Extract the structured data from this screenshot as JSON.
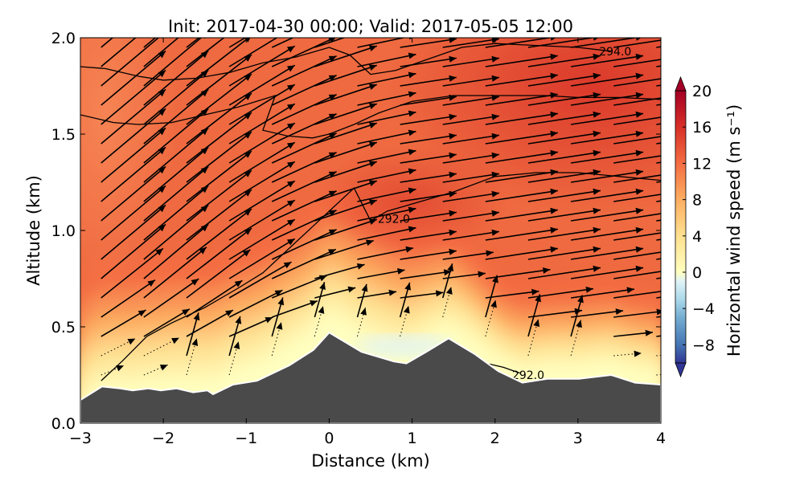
{
  "chart_data": {
    "type": "contour-quiver",
    "title": "Init: 2017-04-30 00:00; Valid: 2017-05-05 12:00",
    "xlabel": "Distance (km)",
    "ylabel": "Altitude (km)",
    "xlim": [
      -3,
      4
    ],
    "ylim": [
      0,
      2
    ],
    "xticks": [
      -3,
      -2,
      -1,
      0,
      1,
      2,
      3,
      4
    ],
    "xtick_labels": [
      "−3",
      "−2",
      "−1",
      "0",
      "1",
      "2",
      "3",
      "4"
    ],
    "yticks": [
      0,
      0.5,
      1,
      1.5,
      2
    ],
    "ytick_labels": [
      "0.0",
      "0.5",
      "1.0",
      "1.5",
      "2.0"
    ],
    "colorbar": {
      "label": "Horizontal wind speed (m s⁻¹)",
      "range": [
        -10,
        20
      ],
      "extend": "both",
      "ticks": [
        -8,
        -4,
        0,
        4,
        8,
        12,
        16,
        20
      ],
      "tick_labels": [
        "−8",
        "−4",
        "0",
        "4",
        "8",
        "12",
        "16",
        "20"
      ],
      "colors": [
        [
          -10,
          "#313695"
        ],
        [
          -8,
          "#4575b4"
        ],
        [
          -5,
          "#74add1"
        ],
        [
          -3,
          "#abd9e9"
        ],
        [
          -1,
          "#e0f3f8"
        ],
        [
          0,
          "#ffffbf"
        ],
        [
          4,
          "#fee090"
        ],
        [
          8,
          "#fdae61"
        ],
        [
          12,
          "#f46d43"
        ],
        [
          16,
          "#d73027"
        ],
        [
          20,
          "#a50026"
        ]
      ]
    },
    "terrain": {
      "color": "#4a4a4a",
      "x": [
        -3.0,
        -2.74,
        -2.52,
        -2.37,
        -2.18,
        -2.03,
        -1.84,
        -1.64,
        -1.47,
        -1.4,
        -1.16,
        -0.87,
        -0.48,
        -0.19,
        0.0,
        0.39,
        0.78,
        0.93,
        1.17,
        1.44,
        1.75,
        2.04,
        2.33,
        2.63,
        3.01,
        3.4,
        3.69,
        4.0
      ],
      "z": [
        0.12,
        0.19,
        0.18,
        0.17,
        0.18,
        0.17,
        0.18,
        0.16,
        0.17,
        0.15,
        0.2,
        0.22,
        0.3,
        0.38,
        0.47,
        0.37,
        0.32,
        0.31,
        0.37,
        0.44,
        0.36,
        0.27,
        0.21,
        0.23,
        0.23,
        0.25,
        0.21,
        0.2
      ]
    },
    "contours": [
      {
        "level": "294.0",
        "label_at": [
          3.45,
          1.93
        ],
        "x": [
          -3,
          -2.7,
          -2.3,
          -2,
          -1.6,
          -1.2,
          -0.8,
          -0.4,
          0,
          0.25,
          0.5,
          0.8,
          1.2,
          1.6,
          2,
          2.5,
          3,
          3.4
        ],
        "z": [
          1.85,
          1.84,
          1.8,
          1.78,
          1.79,
          1.82,
          1.87,
          1.9,
          1.95,
          1.91,
          1.81,
          1.83,
          1.89,
          1.95,
          1.97,
          1.96,
          1.95,
          1.93
        ]
      },
      {
        "level": "294.0",
        "x": [
          -3,
          -2.6,
          -2.3,
          -1.9,
          -1.5,
          -1.1,
          -0.65,
          -0.8,
          -0.5,
          -0.2,
          0,
          0.3,
          0.6,
          1,
          1.5,
          2,
          2.6,
          3,
          3.5,
          4
        ],
        "z": [
          1.6,
          1.56,
          1.55,
          1.56,
          1.6,
          1.64,
          1.7,
          1.52,
          1.49,
          1.48,
          1.5,
          1.55,
          1.61,
          1.67,
          1.7,
          1.7,
          1.7,
          1.69,
          1.69,
          1.68
        ]
      },
      {
        "level": "292.0",
        "label_at": [
          0.78,
          1.06
        ],
        "x": [
          -2.75,
          -2.5,
          -2.2,
          -1.9,
          -1.5,
          -1.1,
          -0.8,
          -0.5,
          -0.2,
          0,
          0.3,
          0.5,
          0.7,
          1.1,
          1.5,
          2,
          2.5,
          3,
          3.5,
          4
        ],
        "z": [
          0.22,
          0.32,
          0.45,
          0.52,
          0.6,
          0.7,
          0.78,
          0.9,
          1.02,
          1.1,
          1.22,
          1.05,
          1.1,
          1.15,
          1.2,
          1.28,
          1.3,
          1.3,
          1.28,
          1.26
        ]
      },
      {
        "level": "292.0",
        "label_at": [
          2.4,
          0.25
        ],
        "x": [
          1.9,
          2.1,
          2.3
        ],
        "z": [
          0.31,
          0.29,
          0.26
        ]
      }
    ],
    "quiver": {
      "x_spacing_km": 0.5,
      "z_spacing_km": 0.1
    }
  }
}
